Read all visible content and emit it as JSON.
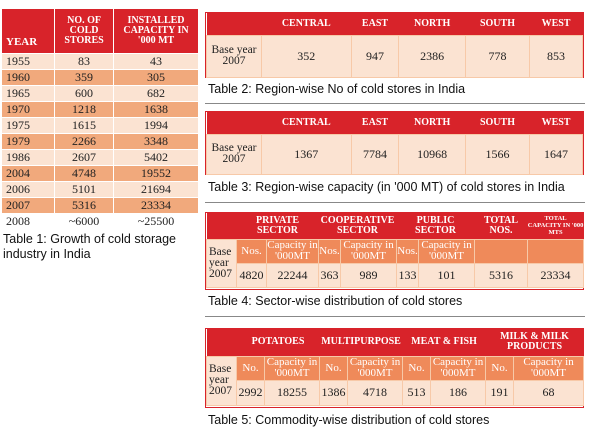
{
  "table1": {
    "headers": [
      "YEAR",
      "NO. OF COLD STORES",
      "INSTALLED CAPACITY IN '000 MT"
    ],
    "rows": [
      [
        "1955",
        "83",
        "43"
      ],
      [
        "1960",
        "359",
        "305"
      ],
      [
        "1965",
        "600",
        "682"
      ],
      [
        "1970",
        "1218",
        "1638"
      ],
      [
        "1975",
        "1615",
        "1994"
      ],
      [
        "1979",
        "2266",
        "3348"
      ],
      [
        "1986",
        "2607",
        "5402"
      ],
      [
        "2004",
        "4748",
        "19552"
      ],
      [
        "2006",
        "5101",
        "21694"
      ],
      [
        "2007",
        "5316",
        "23334"
      ],
      [
        "2008",
        "~6000",
        "~25500"
      ]
    ],
    "caption": "Table 1: Growth of cold storage industry in India"
  },
  "table2": {
    "headers": [
      "",
      "CENTRAL",
      "EAST",
      "NORTH",
      "SOUTH",
      "WEST"
    ],
    "row_label": "Base year 2007",
    "values": [
      "352",
      "947",
      "2386",
      "778",
      "853"
    ],
    "caption": "Table 2: Region-wise No of cold stores in India"
  },
  "table3": {
    "headers": [
      "",
      "CENTRAL",
      "EAST",
      "NORTH",
      "SOUTH",
      "WEST"
    ],
    "row_label": "Base year 2007",
    "values": [
      "1367",
      "7784",
      "10968",
      "1566",
      "1647"
    ],
    "caption": "Table 3: Region-wise capacity (in '000 MT) of cold stores in India"
  },
  "table4": {
    "groups": [
      "PRIVATE SECTOR",
      "COOPERATIVE SECTOR",
      "PUBLIC SECTOR",
      "TOTAL NOS.",
      "TOTAL CAPACITY IN '000 MTs"
    ],
    "subheaders": [
      "Nos.",
      "Capacity in '000MT",
      "Nos.",
      "Capacity in '000MT",
      "Nos.",
      "Capacity in '000MT"
    ],
    "row_label": "Base year 2007",
    "values": [
      "4820",
      "22244",
      "363",
      "989",
      "133",
      "101",
      "5316",
      "23334"
    ],
    "caption": "Table 4: Sector-wise distribution of cold stores"
  },
  "table5": {
    "groups": [
      "POTATOES",
      "MULTIPURPOSE",
      "MEAT & FISH",
      "MILK & MILK PRODUCTS"
    ],
    "subheaders": [
      "No.",
      "Capacity in '000MT",
      "No.",
      "Capacity in '000MT",
      "No.",
      "Capacity in '000MT",
      "No.",
      "Capacity in '000MT"
    ],
    "row_label": "Base year 2007",
    "values": [
      "2992",
      "18255",
      "1386",
      "4718",
      "513",
      "186",
      "191",
      "68"
    ],
    "caption": "Table 5: Commodity-wise distribution of cold stores"
  },
  "colors": {
    "header_red": "#d8232a",
    "row_pale": "#fbe3d2",
    "row_mid": "#f1a97c",
    "sub_orange": "#ef8a5a"
  }
}
